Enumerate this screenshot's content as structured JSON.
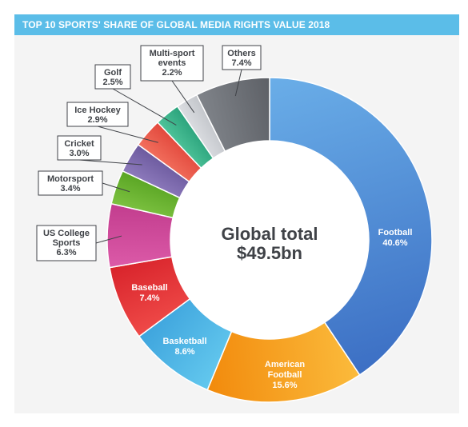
{
  "header": {
    "title": "TOP 10 SPORTS' SHARE OF GLOBAL MEDIA RIGHTS VALUE 2018"
  },
  "center": {
    "line1": "Global total",
    "line2": "$49.5bn"
  },
  "chart_data": {
    "type": "pie",
    "title": "TOP 10 SPORTS' SHARE OF GLOBAL MEDIA RIGHTS VALUE 2018",
    "total": "$49.5bn",
    "unit": "%",
    "slices": [
      {
        "label": "Football",
        "value": 40.6,
        "color": "#3c6fc4",
        "color2": "#6aaee8",
        "label_style": "inside"
      },
      {
        "label": "American Football",
        "value": 15.6,
        "color": "#f28a0c",
        "color2": "#fbbb3c",
        "label_style": "inside"
      },
      {
        "label": "Basketball",
        "value": 8.6,
        "color": "#3ea4dd",
        "color2": "#63c8ee",
        "label_style": "inside"
      },
      {
        "label": "Baseball",
        "value": 7.4,
        "color": "#d8232b",
        "color2": "#ef4a48",
        "label_style": "inside"
      },
      {
        "label": "US College Sports",
        "value": 6.3,
        "color": "#c23d8e",
        "color2": "#dc5aa8",
        "label_style": "callout"
      },
      {
        "label": "Motorsport",
        "value": 3.4,
        "color": "#5aa524",
        "color2": "#7dc241",
        "label_style": "callout"
      },
      {
        "label": "Cricket",
        "value": 3.0,
        "color": "#6c5a9e",
        "color2": "#8e7bbd",
        "label_style": "callout"
      },
      {
        "label": "Ice Hockey",
        "value": 2.9,
        "color": "#e2483c",
        "color2": "#f2705e",
        "label_style": "callout"
      },
      {
        "label": "Golf",
        "value": 2.5,
        "color": "#2ba37c",
        "color2": "#4fc49a",
        "label_style": "callout"
      },
      {
        "label": "Multi-sport events",
        "value": 2.2,
        "color": "#c3c6cb",
        "color2": "#dcdee2",
        "label_style": "callout"
      },
      {
        "label": "Others",
        "value": 7.4,
        "color": "#5d6066",
        "color2": "#80848a",
        "label_style": "callout"
      }
    ]
  }
}
